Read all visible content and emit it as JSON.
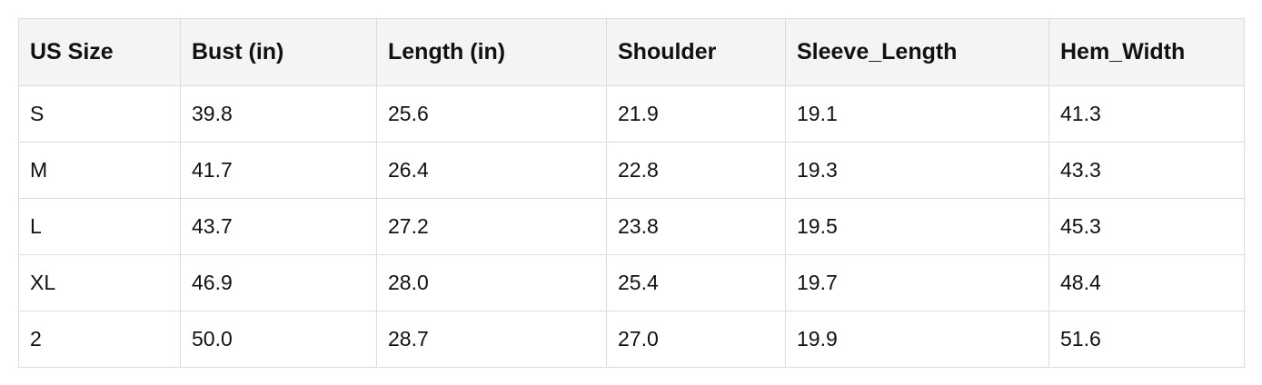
{
  "table": {
    "columns": [
      "US Size",
      "Bust (in)",
      "Length (in)",
      "Shoulder",
      "Sleeve_Length",
      "Hem_Width"
    ],
    "rows": [
      [
        "S",
        "39.8",
        "25.6",
        "21.9",
        "19.1",
        "41.3"
      ],
      [
        "M",
        "41.7",
        "26.4",
        "22.8",
        "19.3",
        "43.3"
      ],
      [
        "L",
        "43.7",
        "27.2",
        "23.8",
        "19.5",
        "45.3"
      ],
      [
        "XL",
        "46.9",
        "28.0",
        "25.4",
        "19.7",
        "48.4"
      ],
      [
        "2",
        "50.0",
        "28.7",
        "27.0",
        "19.9",
        "51.6"
      ]
    ]
  }
}
